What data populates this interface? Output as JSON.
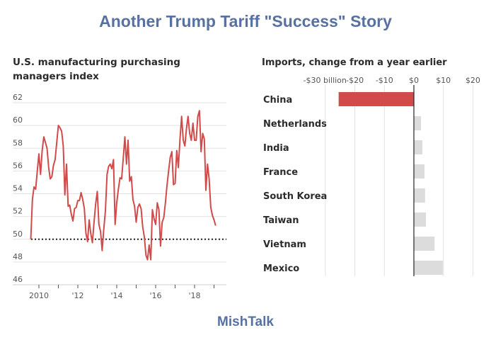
{
  "header": {
    "title": "Another Trump Tariff \"Success\" Story"
  },
  "footer": {
    "brand": "MishTalk"
  },
  "colors": {
    "title": "#5671a2",
    "line": "#d24a4a",
    "china_bar": "#d24a4a",
    "other_bar": "#dcdcdc",
    "grid": "#e2e2e2"
  },
  "chart_data": [
    {
      "type": "line",
      "title": "U.S. manufacturing purchasing managers index",
      "xlabel": "",
      "ylabel": "",
      "ylim": [
        46,
        62
      ],
      "yticks": [
        "62",
        "60",
        "58",
        "56",
        "54",
        "52",
        "50",
        "48",
        "46"
      ],
      "ytick_values": [
        62,
        60,
        58,
        56,
        54,
        52,
        50,
        48,
        46
      ],
      "xticks": [
        "2010",
        "'12",
        "'14",
        "'16",
        "'18"
      ],
      "xtick_values": [
        2010,
        2012,
        2014,
        2016,
        2018
      ],
      "xlim": [
        2009.6,
        2019.6
      ],
      "reference_line": {
        "y": 50,
        "style": "dotted"
      },
      "grid": true,
      "series": [
        {
          "name": "PMI",
          "start": [
            2009,
            8
          ],
          "values": [
            50.0,
            53.5,
            54.6,
            54.4,
            56.0,
            57.5,
            55.7,
            57.8,
            59.0,
            58.5,
            58.0,
            56.3,
            55.3,
            55.5,
            56.5,
            57.0,
            58.5,
            60.0,
            59.8,
            59.5,
            58.2,
            53.9,
            56.6,
            52.9,
            53.0,
            52.2,
            51.6,
            52.7,
            52.8,
            53.4,
            53.4,
            54.1,
            53.5,
            52.7,
            50.5,
            49.8,
            51.7,
            50.5,
            49.7,
            51.5,
            53.1,
            54.2,
            51.3,
            50.7,
            49.0,
            50.9,
            52.5,
            55.7,
            56.4,
            56.6,
            56.2,
            57.0,
            51.3,
            53.2,
            54.4,
            55.4,
            55.3,
            57.1,
            59.0,
            56.6,
            58.7,
            55.1,
            55.5,
            53.5,
            52.9,
            51.5,
            52.8,
            53.1,
            52.7,
            51.1,
            50.2,
            48.6,
            48.2,
            49.5,
            48.2,
            52.6,
            51.8,
            51.3,
            53.2,
            52.6,
            49.4,
            51.5,
            51.9,
            53.2,
            54.7,
            56.0,
            57.2,
            57.7,
            54.8,
            54.9,
            57.8,
            56.3,
            58.8,
            60.8,
            58.7,
            58.2,
            59.7,
            60.8,
            59.3,
            58.7,
            60.2,
            58.7,
            58.7,
            60.8,
            61.3,
            57.7,
            59.3,
            58.8,
            54.3,
            56.6,
            55.3,
            52.8,
            52.1,
            51.7,
            51.2
          ]
        }
      ]
    },
    {
      "type": "bar",
      "orientation": "horizontal",
      "title": "Imports, change from a year earlier",
      "xlabel": "",
      "ylabel": "",
      "xlim": [
        -30,
        22
      ],
      "xticks": [
        "-$30 billion",
        "-$20",
        "-$10",
        "$0",
        "$10",
        "$20"
      ],
      "xtick_values": [
        -30,
        -20,
        -10,
        0,
        10,
        20
      ],
      "grid": true,
      "categories": [
        "China",
        "Netherlands",
        "India",
        "France",
        "South Korea",
        "Taiwan",
        "Vietnam",
        "Mexico"
      ],
      "values": [
        -25.5,
        2.4,
        2.9,
        3.6,
        3.8,
        4.1,
        7.0,
        9.8
      ]
    }
  ]
}
